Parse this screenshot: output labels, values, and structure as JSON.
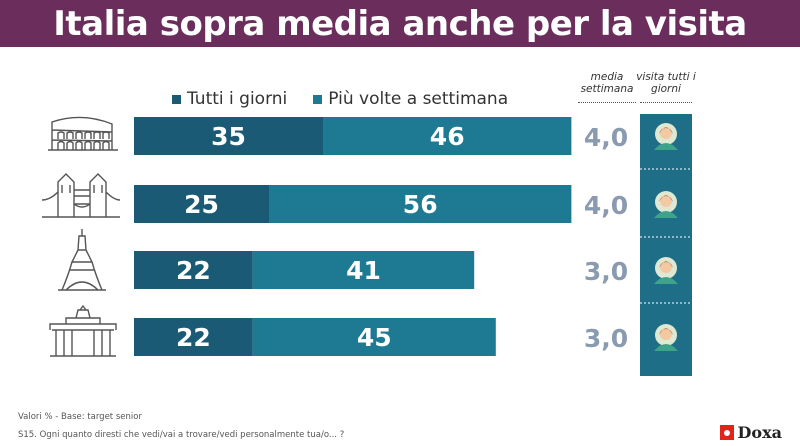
{
  "title": "Italia sopra media anche per la visita",
  "colors": {
    "title_bg": "#6b2d5c",
    "tutti": "#1b5a75",
    "piu": "#1e7a93",
    "mean_text": "#8a9bb0",
    "person_col": "#1f6e87"
  },
  "col_headers": {
    "media": "media settimana",
    "visita": "visita tutti i giorni"
  },
  "chart_data": {
    "type": "bar",
    "stacked": true,
    "orientation": "horizontal",
    "categories": [
      "colosseum-icon",
      "tower-bridge-icon",
      "eiffel-tower-icon",
      "brandenburg-gate-icon"
    ],
    "series": [
      {
        "name": "Tutti i giorni",
        "values": [
          35,
          25,
          22,
          22
        ]
      },
      {
        "name": "Più volte a settimana",
        "values": [
          46,
          56,
          41,
          45
        ]
      }
    ],
    "media_settimana": [
      "4,0",
      "4,0",
      "3,0",
      "3,0"
    ],
    "legend_position": "top"
  },
  "footer": {
    "line1": "Valori % - Base: target senior",
    "line2": "S15. Ogni quanto diresti che vedi/vai a trovare/vedi personalmente tua/o... ?"
  },
  "logo": "Doxa"
}
